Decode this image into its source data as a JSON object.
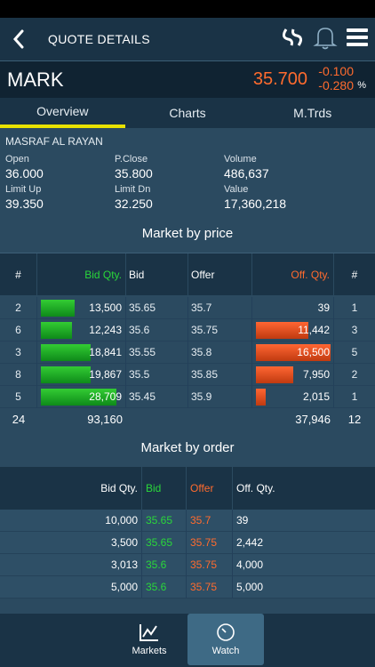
{
  "header": {
    "title": "QUOTE DETAILS"
  },
  "symbol": {
    "code": "MARK",
    "price": "35.700",
    "change": "-0.100",
    "change_pct": "-0.280",
    "pct_sign": "%"
  },
  "tabs": [
    {
      "label": "Overview"
    },
    {
      "label": "Charts"
    },
    {
      "label": "M.Trds"
    }
  ],
  "company": "MASRAF AL RAYAN",
  "stats": [
    {
      "label": "Open",
      "value": "36.000"
    },
    {
      "label": "P.Close",
      "value": "35.800"
    },
    {
      "label": "Volume",
      "value": "486,637"
    },
    {
      "label": "Limit Up",
      "value": "39.350"
    },
    {
      "label": "Limit Dn",
      "value": "32.250"
    },
    {
      "label": "Value",
      "value": "17,360,218"
    }
  ],
  "mbp": {
    "title": "Market by price",
    "headers": {
      "count": "#",
      "bid_qty": "Bid Qty.",
      "bid": "Bid",
      "offer": "Offer",
      "off_qty": "Off. Qty.",
      "count2": "#"
    },
    "rows": [
      {
        "bcnt": "2",
        "bqty": "13,500",
        "bid": "35.65",
        "offer": "35.7",
        "oqty": "39",
        "ocnt": "1",
        "bfill": 0.43,
        "ofill": 0.0
      },
      {
        "bcnt": "6",
        "bqty": "12,243",
        "bid": "35.6",
        "offer": "35.75",
        "oqty": "11,442",
        "ocnt": "3",
        "bfill": 0.4,
        "ofill": 0.7
      },
      {
        "bcnt": "3",
        "bqty": "18,841",
        "bid": "35.55",
        "offer": "35.8",
        "oqty": "16,500",
        "ocnt": "5",
        "bfill": 0.64,
        "ofill": 1.0
      },
      {
        "bcnt": "8",
        "bqty": "19,867",
        "bid": "35.5",
        "offer": "35.85",
        "oqty": "7,950",
        "ocnt": "2",
        "bfill": 0.64,
        "ofill": 0.5
      },
      {
        "bcnt": "5",
        "bqty": "28,709",
        "bid": "35.45",
        "offer": "35.9",
        "oqty": "2,015",
        "ocnt": "1",
        "bfill": 0.97,
        "ofill": 0.13
      }
    ],
    "totals": {
      "bcnt": "24",
      "bqty": "93,160",
      "oqty": "37,946",
      "ocnt": "12"
    }
  },
  "mbo": {
    "title": "Market by order",
    "headers": {
      "bid_qty": "Bid Qty.",
      "bid": "Bid",
      "offer": "Offer",
      "off_qty": "Off. Qty."
    },
    "rows": [
      {
        "bqty": "10,000",
        "bid": "35.65",
        "offer": "35.7",
        "oqty": "39"
      },
      {
        "bqty": "3,500",
        "bid": "35.65",
        "offer": "35.75",
        "oqty": "2,442"
      },
      {
        "bqty": "3,013",
        "bid": "35.6",
        "offer": "35.75",
        "oqty": "4,000"
      },
      {
        "bqty": "5,000",
        "bid": "35.6",
        "offer": "35.75",
        "oqty": "5,000"
      }
    ]
  },
  "bottom_nav": [
    {
      "label": "Markets",
      "icon": "chart-icon"
    },
    {
      "label": "Watch",
      "icon": "clock-icon"
    }
  ],
  "colors": {
    "bid": "#2ad63a",
    "offer": "#ff6b2e",
    "accent": "#e8e200"
  }
}
